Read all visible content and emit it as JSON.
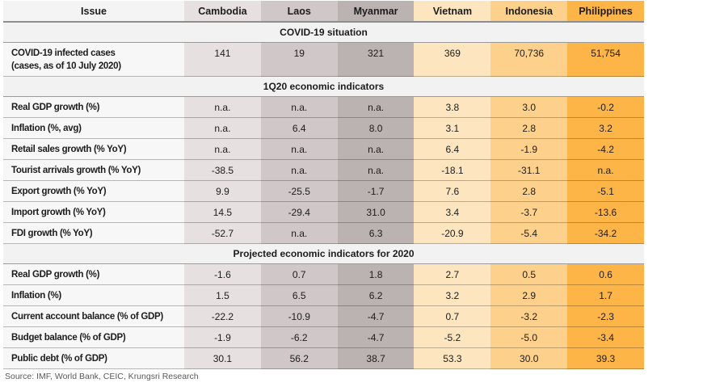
{
  "chart_data": {
    "type": "table",
    "title": "",
    "issue_header": "Issue",
    "countries": [
      {
        "name": "Cambodia",
        "color": "#e7e0e0"
      },
      {
        "name": "Laos",
        "color": "#d0c8c8"
      },
      {
        "name": "Myanmar",
        "color": "#bbb2b2"
      },
      {
        "name": "Vietnam",
        "color": "#fde6bf"
      },
      {
        "name": "Indonesia",
        "color": "#fdd18b"
      },
      {
        "name": "Philippines",
        "color": "#fdb548"
      }
    ],
    "section_background": "#f2f2f2",
    "sections": [
      {
        "title": "COVID-19 situation",
        "rows": [
          {
            "label": "COVID-19 infected cases",
            "sublabel": "(cases, as of 10 July 2020)",
            "values": [
              "141",
              "19",
              "321",
              "369",
              "70,736",
              "51,754"
            ]
          }
        ]
      },
      {
        "title": "1Q20 economic indicators",
        "rows": [
          {
            "label": "Real GDP growth (%)",
            "values": [
              "n.a.",
              "n.a.",
              "n.a.",
              "3.8",
              "3.0",
              "-0.2"
            ]
          },
          {
            "label": "Inflation (%, avg)",
            "values": [
              "n.a.",
              "6.4",
              "8.0",
              "3.1",
              "2.8",
              "3.2"
            ]
          },
          {
            "label": "Retail sales growth (% YoY)",
            "values": [
              "n.a.",
              "n.a.",
              "n.a.",
              "6.4",
              "-1.9",
              "-4.2"
            ]
          },
          {
            "label": "Tourist arrivals growth (% YoY)",
            "values": [
              "-38.5",
              "n.a.",
              "n.a.",
              "-18.1",
              "-31.1",
              "n.a."
            ]
          },
          {
            "label": "Export growth (% YoY)",
            "values": [
              "9.9",
              "-25.5",
              "-1.7",
              "7.6",
              "2.8",
              "-5.1"
            ]
          },
          {
            "label": "Import growth (% YoY)",
            "values": [
              "14.5",
              "-29.4",
              "31.0",
              "3.4",
              "-3.7",
              "-13.6"
            ]
          },
          {
            "label": "FDI growth (% YoY)",
            "values": [
              "-52.7",
              "n.a.",
              "6.3",
              "-20.9",
              "-5.4",
              "-34.2"
            ]
          }
        ]
      },
      {
        "title": "Projected economic indicators for 2020",
        "rows": [
          {
            "label": "Real GDP growth (%)",
            "values": [
              "-1.6",
              "0.7",
              "1.8",
              "2.7",
              "0.5",
              "0.6"
            ]
          },
          {
            "label": "Inflation (%)",
            "values": [
              "1.5",
              "6.5",
              "6.2",
              "3.2",
              "2.9",
              "1.7"
            ]
          },
          {
            "label": "Current account balance (% of GDP)",
            "values": [
              "-22.2",
              "-10.9",
              "-4.7",
              "0.7",
              "-3.2",
              "-2.3"
            ]
          },
          {
            "label": "Budget balance (% of GDP)",
            "values": [
              "-1.9",
              "-6.2",
              "-4.7",
              "-5.2",
              "-5.0",
              "-3.4"
            ]
          },
          {
            "label": "Public debt (% of GDP)",
            "values": [
              "30.1",
              "56.2",
              "38.7",
              "53.3",
              "30.0",
              "39.3"
            ]
          }
        ]
      }
    ],
    "source": "Source: IMF, World Bank, CEIC, Krungsri Research"
  }
}
